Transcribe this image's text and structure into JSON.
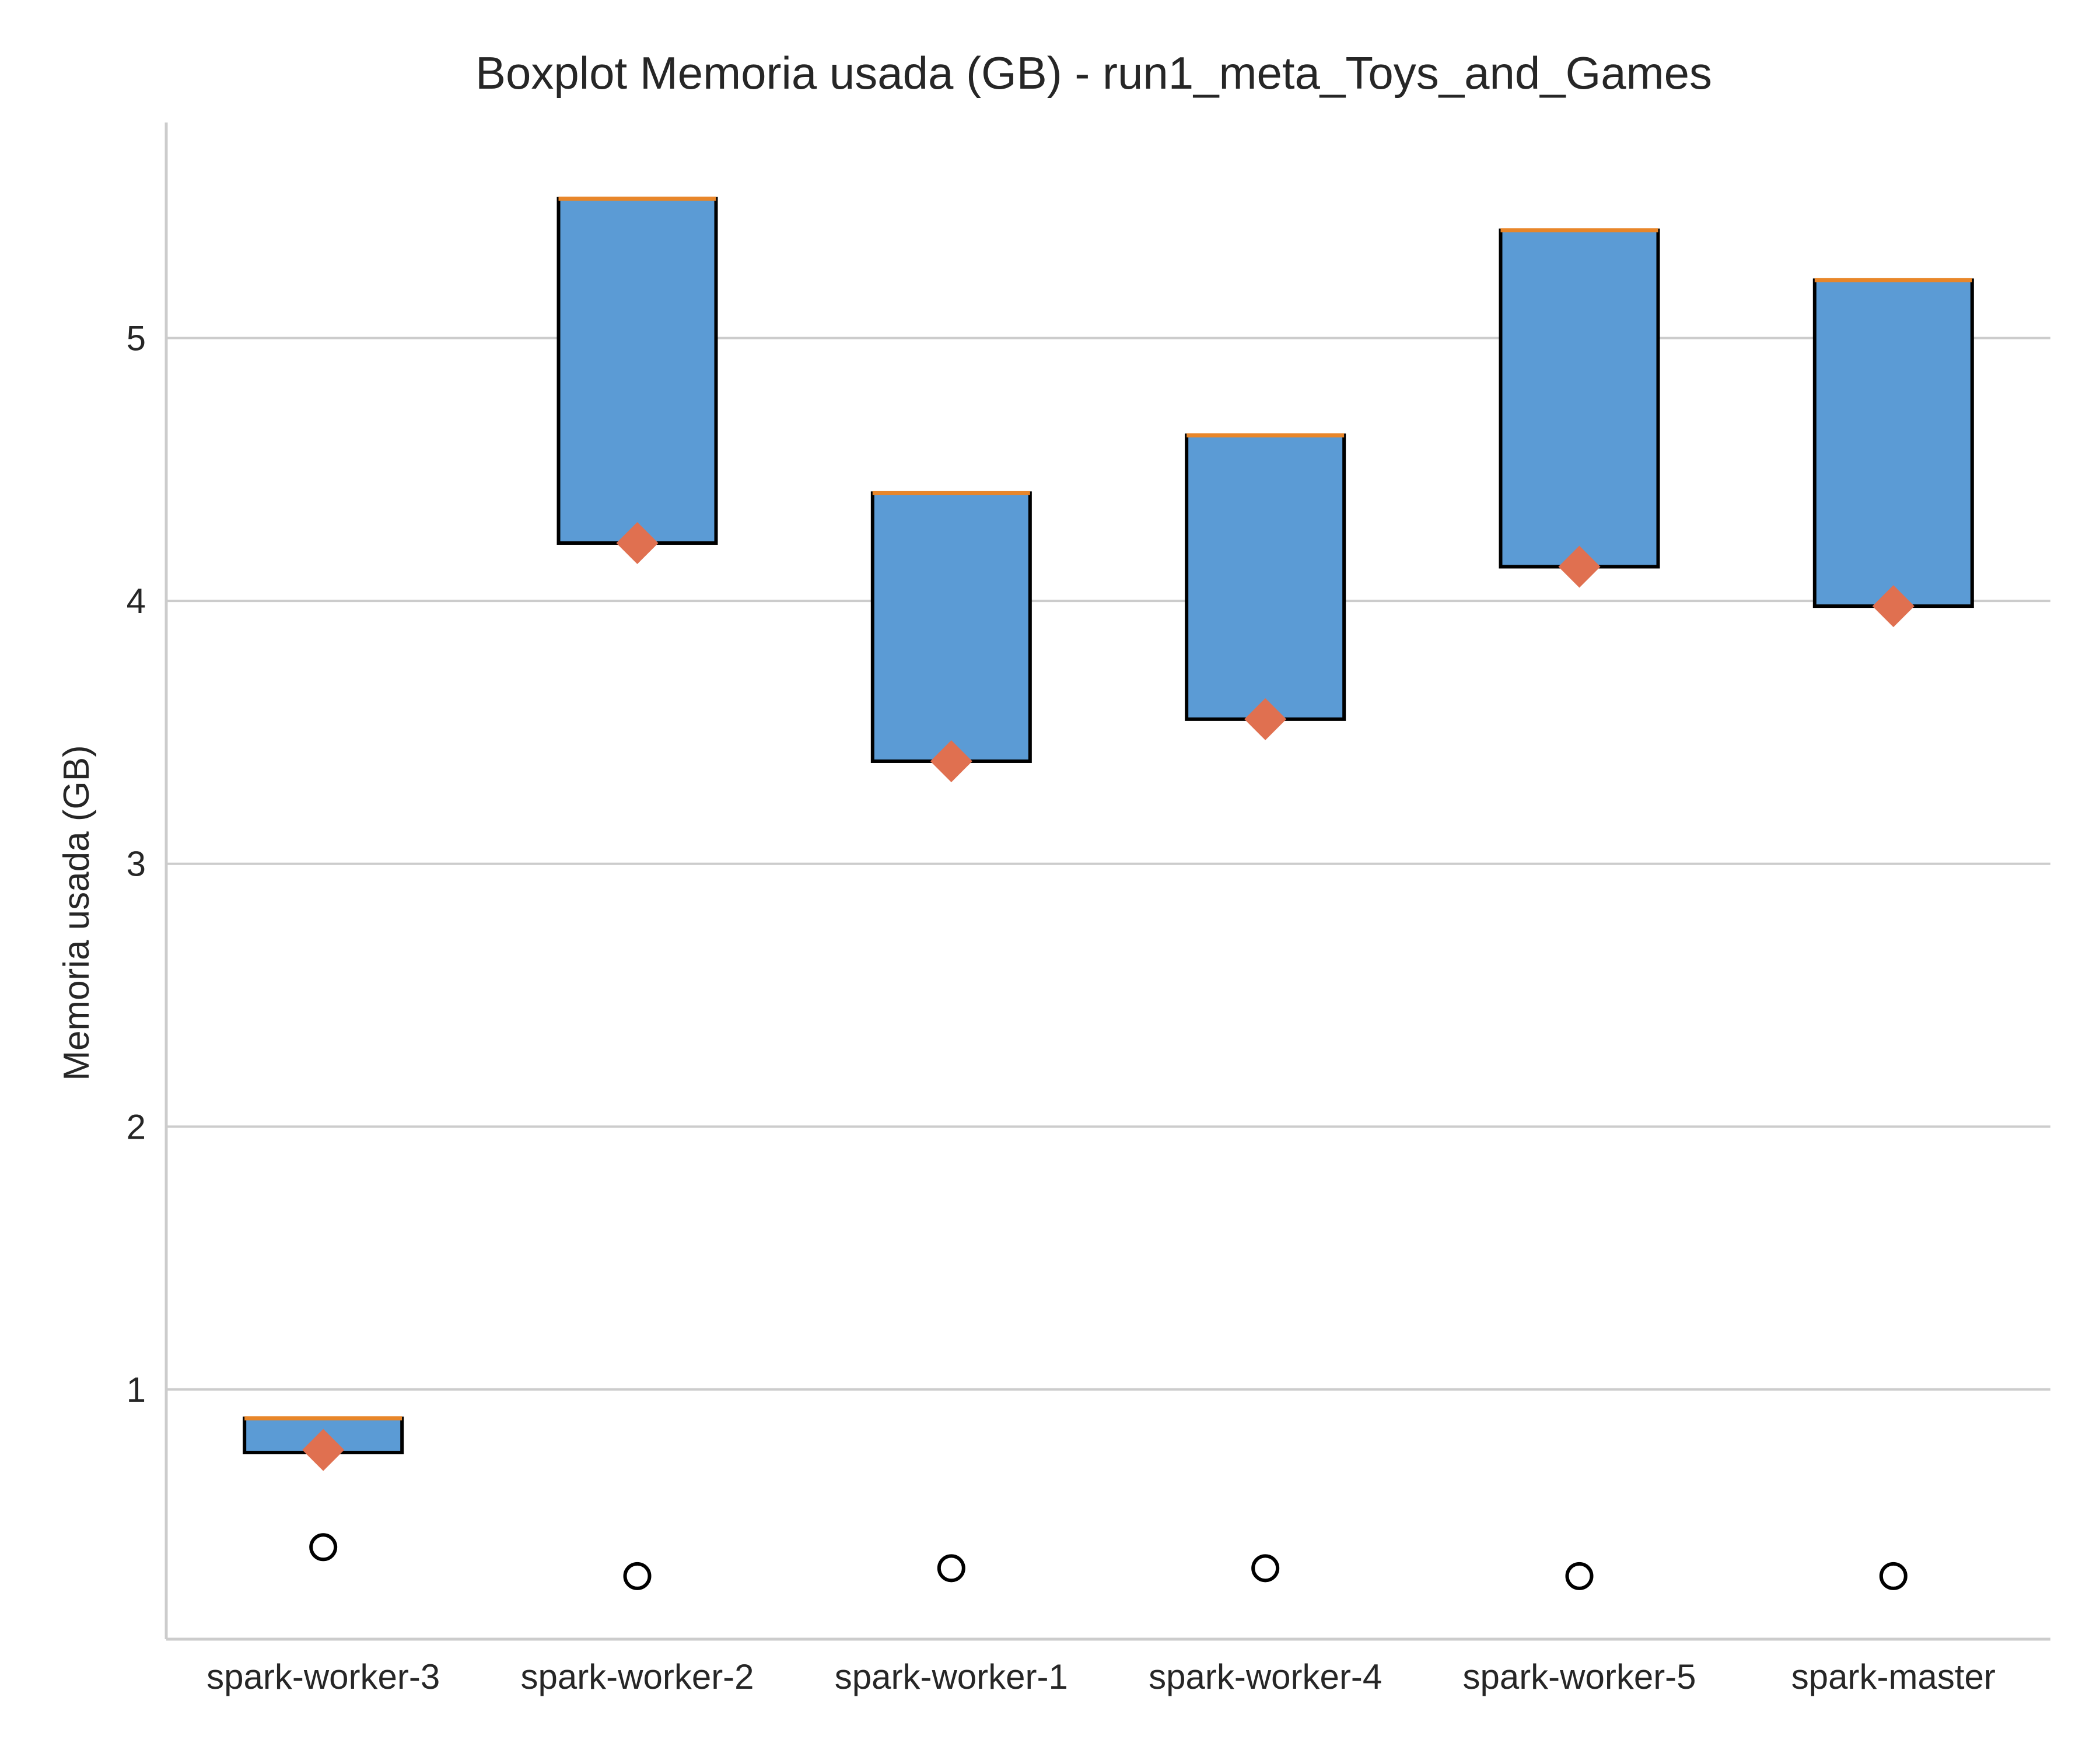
{
  "chart_data": {
    "type": "boxplot",
    "title": "Boxplot Memoria usada (GB) - run1_meta_Toys_and_Games",
    "xlabel": "",
    "ylabel": "Memoria usada (GB)",
    "ylim": [
      0.05,
      5.82
    ],
    "yticks": [
      "1",
      "2",
      "3",
      "4",
      "5"
    ],
    "grid": "horizontal",
    "legend": "none",
    "categories": [
      "spark-worker-3",
      "spark-worker-2",
      "spark-worker-1",
      "spark-worker-4",
      "spark-worker-5",
      "spark-master"
    ],
    "boxes": [
      {
        "q1": 0.76,
        "median": 0.89,
        "q3": 0.89,
        "whisker_low": 0.76,
        "whisker_high": 0.89,
        "mean": 0.77,
        "outliers": [
          0.4
        ]
      },
      {
        "q1": 4.22,
        "median": 5.53,
        "q3": 5.53,
        "whisker_low": 4.22,
        "whisker_high": 5.53,
        "mean": 4.22,
        "outliers": [
          0.29
        ]
      },
      {
        "q1": 3.39,
        "median": 4.41,
        "q3": 4.41,
        "whisker_low": 3.39,
        "whisker_high": 4.41,
        "mean": 3.39,
        "outliers": [
          0.32
        ]
      },
      {
        "q1": 3.55,
        "median": 4.63,
        "q3": 4.63,
        "whisker_low": 3.55,
        "whisker_high": 4.63,
        "mean": 3.55,
        "outliers": [
          0.32
        ]
      },
      {
        "q1": 4.13,
        "median": 5.41,
        "q3": 5.41,
        "whisker_low": 4.13,
        "whisker_high": 5.41,
        "mean": 4.13,
        "outliers": [
          0.29
        ]
      },
      {
        "q1": 3.98,
        "median": 5.22,
        "q3": 5.22,
        "whisker_low": 3.98,
        "whisker_high": 5.22,
        "mean": 3.98,
        "outliers": [
          0.29
        ]
      }
    ],
    "colors": {
      "box_fill": "#5b9bd5",
      "box_edge": "#000000",
      "median": "#e8862a",
      "mean_marker": "#e07050",
      "grid": "#cccccc",
      "axis": "#cccccc",
      "text": "#262626"
    }
  }
}
